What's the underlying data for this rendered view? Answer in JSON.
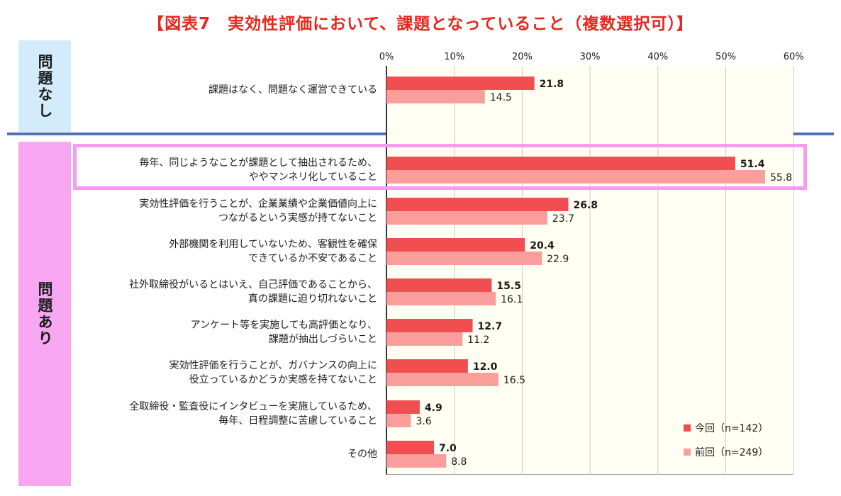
{
  "chart_data": {
    "type": "bar",
    "orientation": "horizontal",
    "title": "【図表7　実効性評価において、課題となっていること（複数選択可）】",
    "xlim": [
      0,
      60
    ],
    "xticks": [
      "0%",
      "10%",
      "20%",
      "30%",
      "40%",
      "50%",
      "60%"
    ],
    "groups": [
      {
        "label": "問題なし",
        "category_indices": [
          0
        ]
      },
      {
        "label": "問題あり",
        "category_indices": [
          1,
          2,
          3,
          4,
          5,
          6,
          7,
          8
        ]
      }
    ],
    "categories": [
      [
        "課題はなく、問題なく運営できている"
      ],
      [
        "毎年、同じようなことが課題として抽出されるため、",
        "ややマンネリ化していること"
      ],
      [
        "実効性評価を行うことが、企業業績や企業価値向上に",
        "つながるという実感が持てないこと"
      ],
      [
        "外部機関を利用していないため、客観性を確保",
        "できているか不安であること"
      ],
      [
        "社外取締役がいるとはいえ、自己評価であることから、",
        "真の課題に迫り切れないこと"
      ],
      [
        "アンケート等を実施しても高評価となり、",
        "課題が抽出しづらいこと"
      ],
      [
        "実効性評価を行うことが、ガバナンスの向上に",
        "役立っているかどうか実感を持てないこと"
      ],
      [
        "全取締役・監査役にインタビューを実施しているため、",
        "毎年、日程調整に苦慮していること"
      ],
      [
        "その他"
      ]
    ],
    "series": [
      {
        "name": "今回（n=142）",
        "color": "#f04e50",
        "values": [
          21.8,
          51.4,
          26.8,
          20.4,
          15.5,
          12.7,
          12.0,
          4.9,
          7.0
        ]
      },
      {
        "name": "前回（n=249）",
        "color": "#fa9e9b",
        "values": [
          14.5,
          55.8,
          23.7,
          22.9,
          16.1,
          11.2,
          16.5,
          3.6,
          8.8
        ]
      }
    ],
    "legend_position": "bottom-right",
    "grid": true,
    "highlighted_category": 1
  }
}
